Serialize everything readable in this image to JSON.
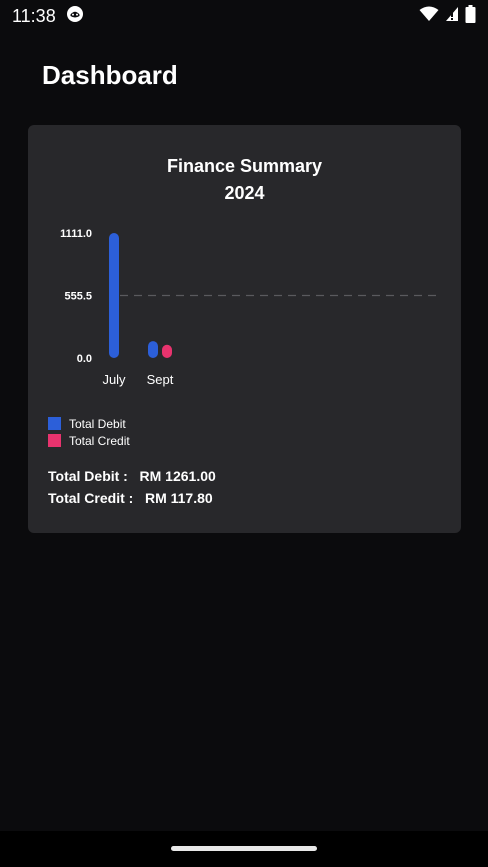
{
  "status_bar": {
    "time": "11:38"
  },
  "page": {
    "title": "Dashboard"
  },
  "card": {
    "title": "Finance Summary",
    "subtitle": "2024"
  },
  "chart_data": {
    "type": "bar",
    "title": "Finance Summary",
    "subtitle": "2024",
    "categories": [
      "July",
      "Sept"
    ],
    "series": [
      {
        "name": "Total Debit",
        "values": [
          1111.0,
          150.0
        ],
        "color": "#2c5fd9"
      },
      {
        "name": "Total Credit",
        "values": [
          0,
          117.8
        ],
        "color": "#e8336e"
      }
    ],
    "y_ticks": [
      "1111.0",
      "555.5",
      "0.0"
    ],
    "ylim": [
      0,
      1111.0
    ],
    "reference_line": 555.5,
    "legend_position": "bottom-left",
    "grid": false
  },
  "legend": [
    {
      "label": "Total Debit",
      "color": "#2c5fd9"
    },
    {
      "label": "Total Credit",
      "color": "#e8336e"
    }
  ],
  "totals": {
    "debit_label": "Total Debit :",
    "debit_value": "RM 1261.00",
    "credit_label": "Total Credit :",
    "credit_value": "RM 117.80"
  }
}
